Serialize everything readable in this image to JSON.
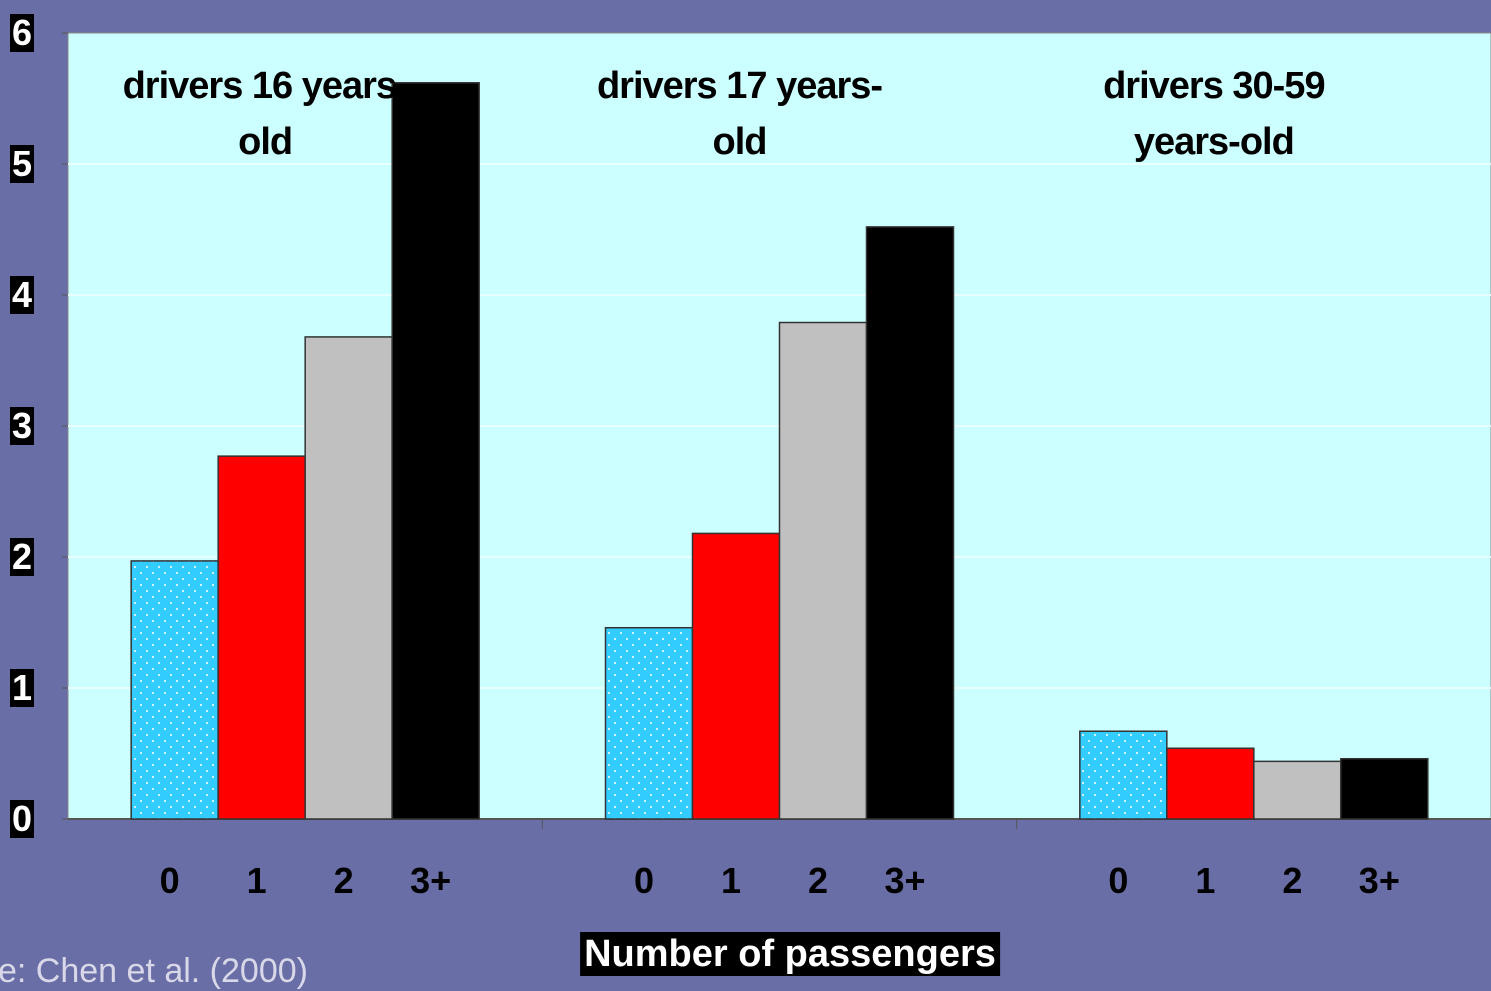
{
  "chart_data": {
    "type": "bar",
    "categories": [
      "drivers 16 years-old",
      "drivers 17 years-old",
      "drivers 30-59 years-old"
    ],
    "series": [
      {
        "name": "0",
        "color": "#33ccff",
        "values": [
          1.97,
          1.46,
          0.67
        ]
      },
      {
        "name": "1",
        "color": "#ff0000",
        "values": [
          2.77,
          2.18,
          0.54
        ]
      },
      {
        "name": "2",
        "color": "#c0c0c0",
        "values": [
          3.68,
          3.79,
          0.44
        ]
      },
      {
        "name": "3+",
        "color": "#000000",
        "values": [
          5.62,
          4.52,
          0.46
        ]
      }
    ],
    "xlabel": "Number of passengers",
    "source": "e: Chen et al. (2000)",
    "ylim": [
      0,
      6
    ],
    "yticks": [
      0,
      1,
      2,
      3,
      4,
      5,
      6
    ],
    "grid": true
  }
}
